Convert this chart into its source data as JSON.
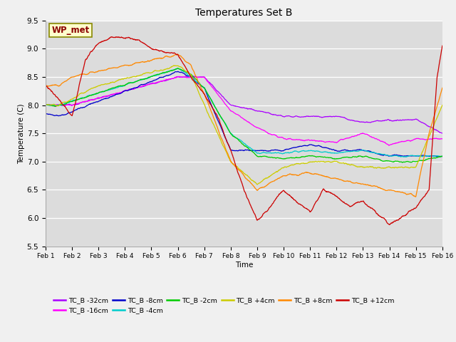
{
  "title": "Temperatures Set B",
  "xlabel": "Time",
  "ylabel": "Temperature (C)",
  "ylim": [
    5.5,
    9.5
  ],
  "xlim": [
    0,
    15
  ],
  "xtick_labels": [
    "Feb 1",
    "Feb 2",
    "Feb 3",
    "Feb 4",
    "Feb 5",
    "Feb 6",
    "Feb 7",
    "Feb 8",
    "Feb 9",
    "Feb 10",
    "Feb 11",
    "Feb 12",
    "Feb 13",
    "Feb 14",
    "Feb 15",
    "Feb 16"
  ],
  "ytick_vals": [
    5.5,
    6.0,
    6.5,
    7.0,
    7.5,
    8.0,
    8.5,
    9.0,
    9.5
  ],
  "wp_met_label": "WP_met",
  "colors": {
    "TC_B -32cm": "#aa00ff",
    "TC_B -16cm": "#ff00ff",
    "TC_B -8cm": "#0000cc",
    "TC_B -4cm": "#00cccc",
    "TC_B -2cm": "#00cc00",
    "TC_B +4cm": "#cccc00",
    "TC_B +8cm": "#ff8800",
    "TC_B +12cm": "#cc0000"
  },
  "fig_bg": "#f0f0f0",
  "ax_bg": "#dcdcdc"
}
